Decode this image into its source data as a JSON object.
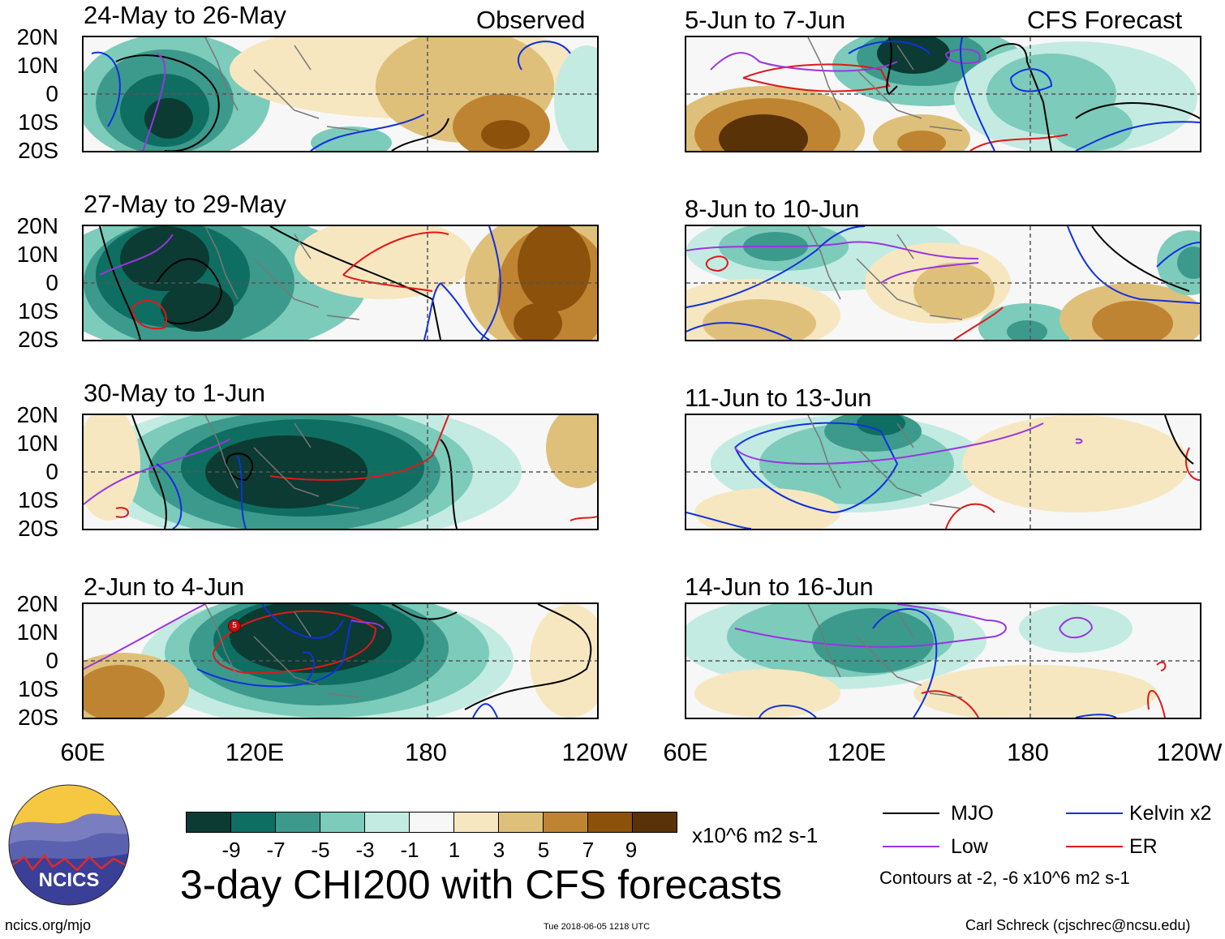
{
  "header": {
    "left_tag": "Observed",
    "right_tag": "CFS Forecast"
  },
  "panels_left": [
    {
      "title": "24-May to 26-May"
    },
    {
      "title": "27-May to 29-May"
    },
    {
      "title": "30-May to 1-Jun"
    },
    {
      "title": "2-Jun to 4-Jun"
    }
  ],
  "panels_right": [
    {
      "title": "5-Jun to 7-Jun"
    },
    {
      "title": "8-Jun to 10-Jun"
    },
    {
      "title": "11-Jun to 13-Jun"
    },
    {
      "title": "14-Jun to 16-Jun"
    }
  ],
  "lat_labels": [
    "20N",
    "10N",
    "0",
    "10S",
    "20S"
  ],
  "lon_labels": [
    "60E",
    "120E",
    "180",
    "120W"
  ],
  "colorbar": {
    "colors": [
      "#0b3b32",
      "#0f6e62",
      "#3c9a8c",
      "#7ccbbb",
      "#c3ebe2",
      "#f7f7f7",
      "#f6e7c0",
      "#dfc07a",
      "#bf8432",
      "#8c510a",
      "#5a3208"
    ],
    "ticks": [
      "-9",
      "-7",
      "-5",
      "-3",
      "-1",
      "1",
      "3",
      "5",
      "7",
      "9"
    ],
    "units": "x10^6 m2 s-1"
  },
  "title": "3-day CHI200 with CFS forecasts",
  "legend": {
    "items": [
      {
        "label": "MJO",
        "color": "#000000"
      },
      {
        "label": "Kelvin x2",
        "color": "#1030e0"
      },
      {
        "label": "Low",
        "color": "#9a35e0"
      },
      {
        "label": "ER",
        "color": "#e01818"
      }
    ],
    "contour_note": "Contours at -2, -6 x10^6 m2 s-1"
  },
  "logo": {
    "text": "NCICS"
  },
  "footer": {
    "website": "ncics.org/mjo",
    "timestamp": "Tue 2018-06-05 1218 UTC",
    "author": "Carl Schreck (cjschrec@ncsu.edu)"
  },
  "storm_marker": {
    "label": "5"
  }
}
